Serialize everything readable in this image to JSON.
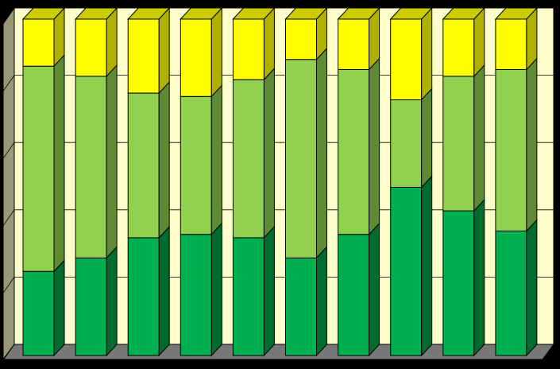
{
  "chart_data": {
    "type": "bar",
    "stacked": true,
    "percent_stacked": true,
    "three_d": true,
    "grid": true,
    "legend": "none",
    "title": "",
    "xlabel": "",
    "ylabel": "",
    "ylim": [
      0,
      100
    ],
    "categories": [
      "",
      "",
      "",
      "",
      "",
      "",
      "",
      "",
      "",
      ""
    ],
    "series": [
      {
        "values": [
          25,
          29,
          35,
          36,
          35,
          29,
          36,
          50,
          43,
          37
        ]
      },
      {
        "values": [
          61,
          54,
          43,
          41,
          47,
          59,
          49,
          26,
          40,
          48
        ]
      },
      {
        "values": [
          14,
          17,
          22,
          23,
          18,
          12,
          15,
          24,
          17,
          15
        ]
      }
    ]
  },
  "colors": {
    "background": "#000000",
    "back_wall": "#FFFFCC",
    "side_wall": "#999977",
    "floor": "#777777",
    "gridline": "#000000",
    "series": [
      {
        "front": "#00B050",
        "side": "#006B2F",
        "top": "#00D060"
      },
      {
        "front": "#92D050",
        "side": "#5E8A33",
        "top": "#A8E070"
      },
      {
        "front": "#FFFF00",
        "side": "#B0B000",
        "top": "#CCCC00"
      }
    ]
  }
}
